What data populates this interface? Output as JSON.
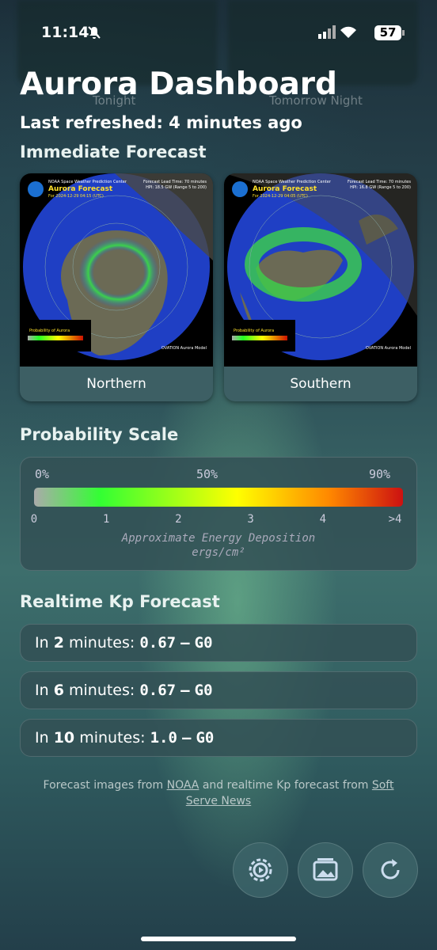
{
  "status_bar": {
    "time": "11:14",
    "battery": "57"
  },
  "background_labels": [
    "Tonight",
    "Tomorrow Night"
  ],
  "header": {
    "title": "Aurora Dashboard",
    "subtitle": "Last refreshed: 4 minutes ago"
  },
  "immediate_forecast": {
    "heading": "Immediate Forecast",
    "cards": [
      {
        "label": "Northern",
        "source": "NOAA Space Weather Prediction Center",
        "map_title": "Aurora Forecast",
        "valid": "For 2024-12-29 04:15 (UTC)",
        "lead": "Forecast Lead Time: 70 minutes",
        "hpi": "HPI: 18.5 GW (Range 5 to 200)",
        "legend_title": "Probability of Aurora",
        "model": "OVATION Aurora Model"
      },
      {
        "label": "Southern",
        "source": "NOAA Space Weather Prediction Center",
        "map_title": "Aurora Forecast",
        "valid": "For 2024-12-29 04:05 (UTC)",
        "lead": "Forecast Lead Time: 70 minutes",
        "hpi": "HPI: 16.8 GW (Range 5 to 200)",
        "legend_title": "Probability of Aurora",
        "model": "OVATION Aurora Model"
      }
    ]
  },
  "probability_scale": {
    "heading": "Probability Scale",
    "percent_labels": [
      "0%",
      "50%",
      "90%"
    ],
    "energy_ticks": [
      "0",
      "1",
      "2",
      "3",
      "4",
      ">4"
    ],
    "caption": "Approximate Energy Deposition",
    "unit": "ergs/cm²"
  },
  "kp_forecast": {
    "heading": "Realtime Kp Forecast",
    "rows": [
      {
        "lead": "In",
        "minutes": "2",
        "unit": "minutes:",
        "kp": "0.67",
        "separator": "—",
        "scale": "G0"
      },
      {
        "lead": "In",
        "minutes": "6",
        "unit": "minutes:",
        "kp": "0.67",
        "separator": "—",
        "scale": "G0"
      },
      {
        "lead": "In",
        "minutes": "10",
        "unit": "minutes:",
        "kp": "1.0",
        "separator": "—",
        "scale": "G0"
      }
    ]
  },
  "footer": {
    "prefix": "Forecast images from",
    "link1": "NOAA",
    "middle": "and realtime Kp forecast from",
    "link2": "Soft Serve News"
  }
}
